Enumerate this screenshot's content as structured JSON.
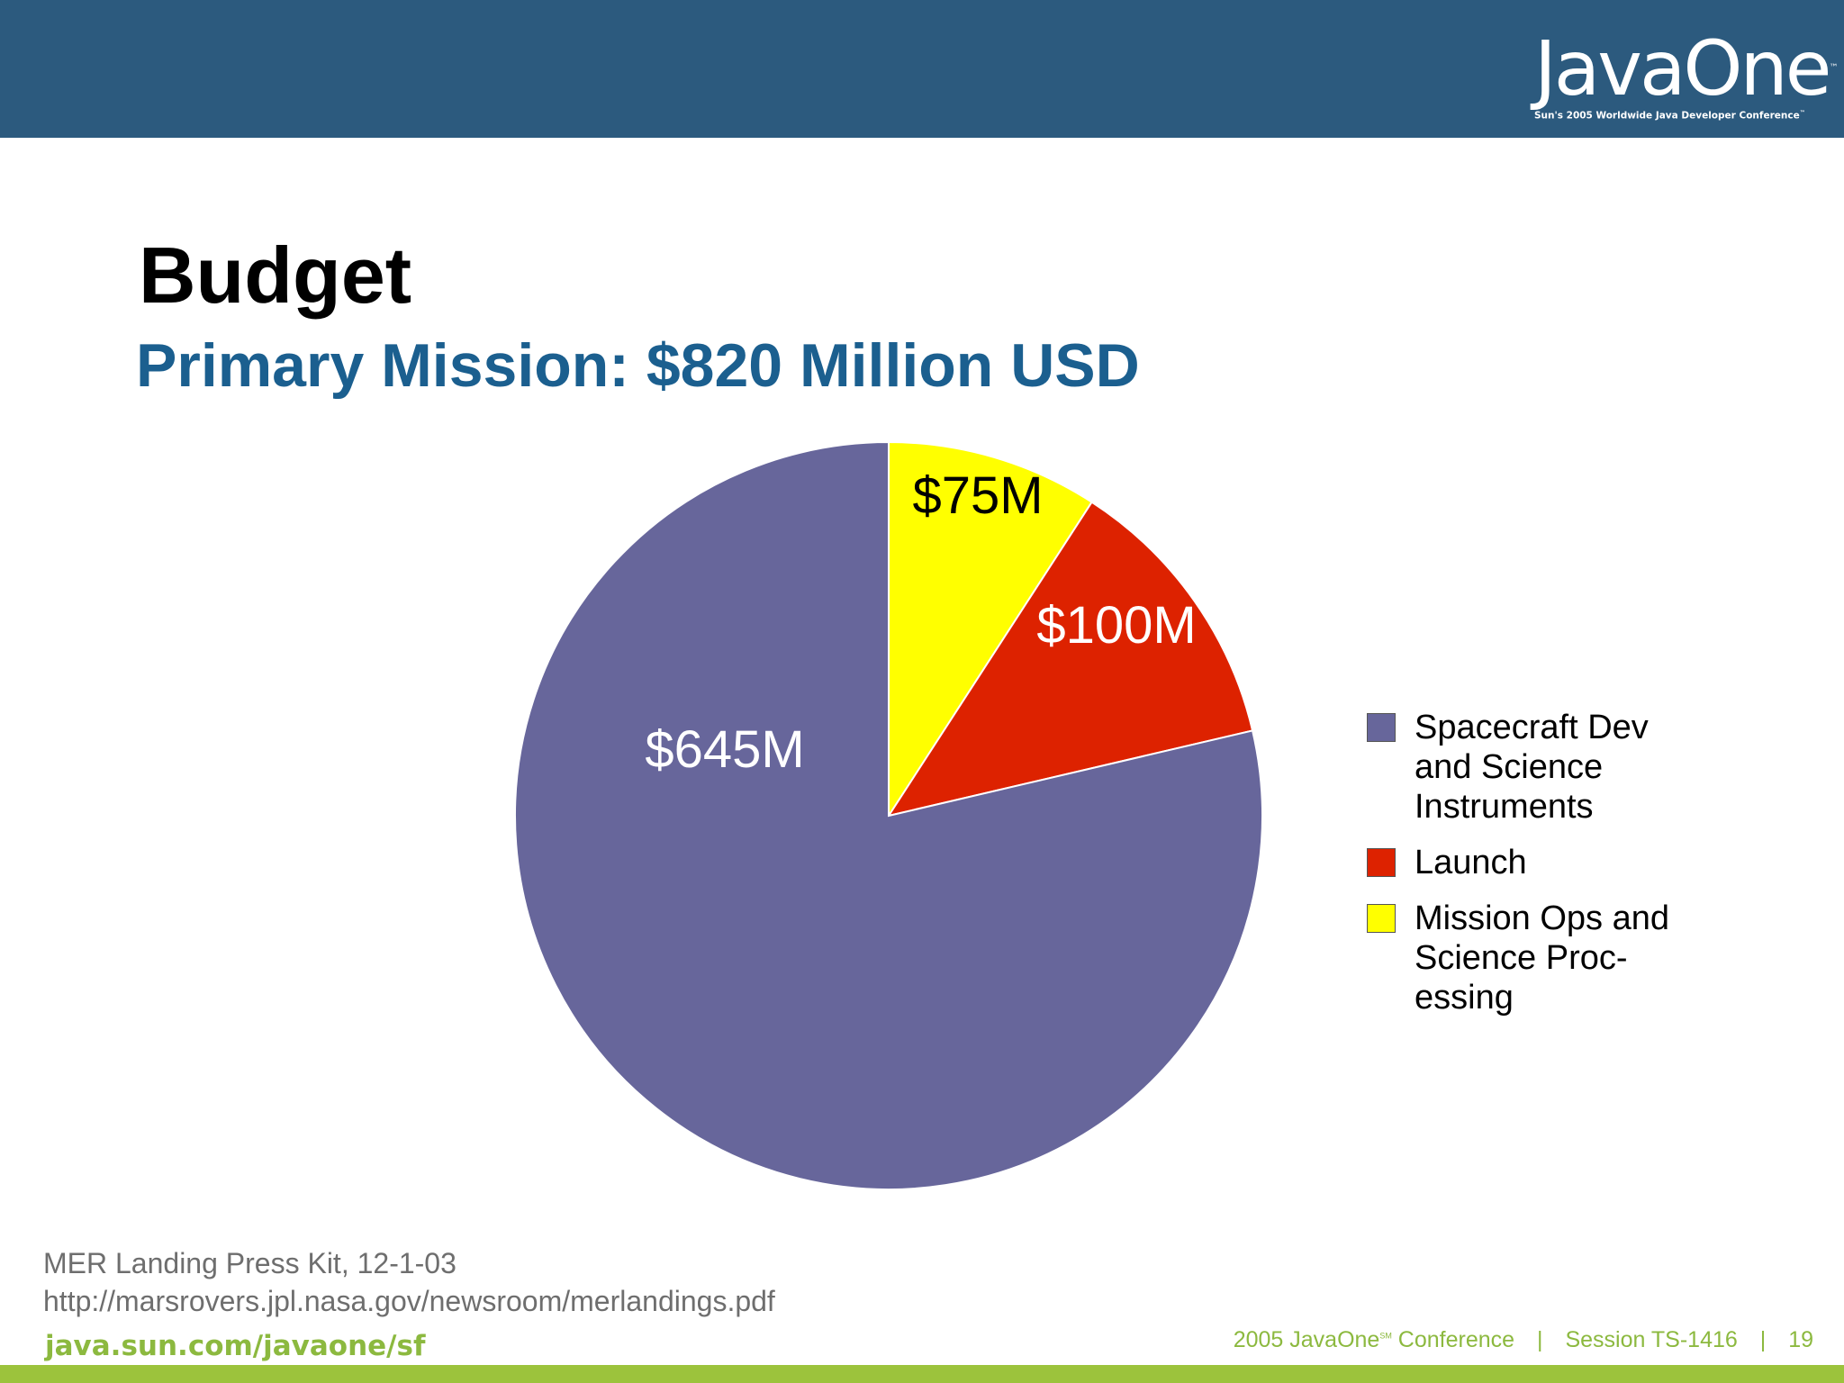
{
  "header": {
    "logo_text": "JavaOne",
    "logo_tagline": "Sun's 2005 Worldwide Java Developer Conference",
    "background_color": "#2c5a7e"
  },
  "slide": {
    "title": "Budget",
    "subtitle": "Primary Mission: $820 Million USD"
  },
  "chart_data": {
    "type": "pie",
    "title": "Primary Mission: $820 Million USD",
    "total": 820,
    "unit": "$M",
    "start_angle_deg": 0,
    "direction": "clockwise",
    "slices": [
      {
        "name": "Mission Ops and Science Proc-essing",
        "value": 75,
        "label": "$75M",
        "color": "#ffff00",
        "label_color": "#000000"
      },
      {
        "name": "Launch",
        "value": 100,
        "label": "$100M",
        "color": "#dd2200",
        "label_color": "#ffffff"
      },
      {
        "name": "Spacecraft Dev and Science Instruments",
        "value": 645,
        "label": "$645M",
        "color": "#67669b",
        "label_color": "#ffffff"
      }
    ],
    "legend": {
      "placement": "right",
      "entries": [
        {
          "lines": [
            "Spacecraft Dev",
            "and Science",
            "Instruments"
          ],
          "color": "#67669b"
        },
        {
          "lines": [
            "Launch"
          ],
          "color": "#dd2200"
        },
        {
          "lines": [
            "Mission Ops and",
            "Science Proc-",
            "essing"
          ],
          "color": "#ffff00"
        }
      ]
    }
  },
  "source": {
    "line1": "MER Landing Press Kit, 12-1-03",
    "line2": "http://marsrovers.jpl.nasa.gov/newsroom/merlandings.pdf"
  },
  "footer": {
    "url": "java.sun.com/javaone/sf",
    "conference_prefix": "2005 JavaOne",
    "conference_mark": "SM",
    "conference_suffix": " Conference",
    "separator": "|",
    "session": "Session TS-1416",
    "page_number": "19",
    "accent_color": "#9cc33c"
  }
}
